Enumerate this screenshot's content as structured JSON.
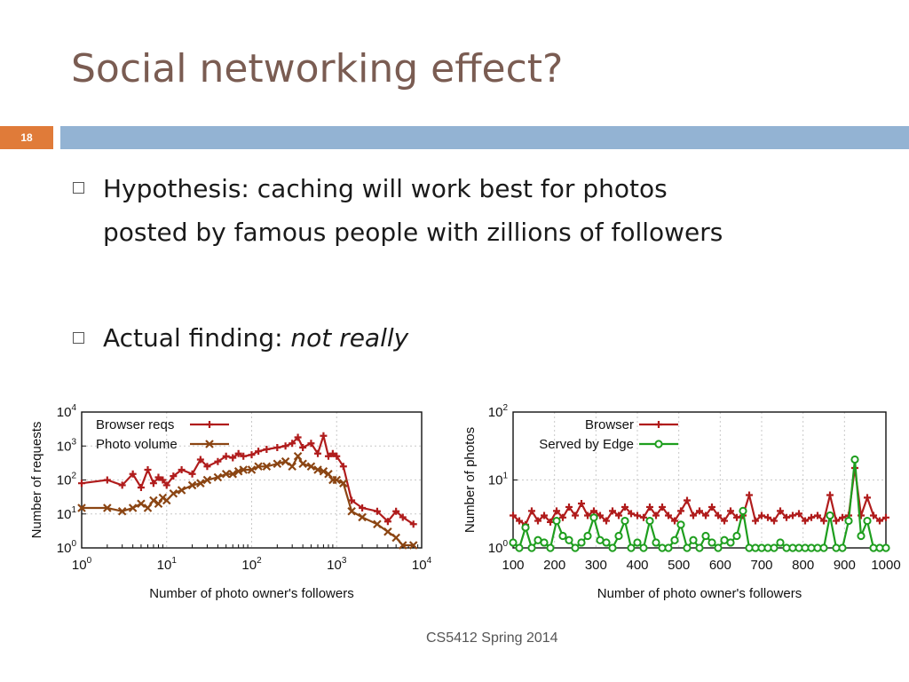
{
  "slide": {
    "title": "Social networking effect?",
    "slide_number": "18",
    "footer": "CS5412 Spring 2014",
    "colors": {
      "title": "#7a5c52",
      "accent_box": "#e07b39",
      "band": "#93b3d3"
    }
  },
  "bullets": [
    {
      "lines": [
        "Hypothesis: caching will work best for photos",
        "posted by famous people with zillions of followers"
      ]
    },
    {
      "lead": "Actual finding: ",
      "emph": "not really"
    }
  ],
  "chart_data": [
    {
      "type": "line",
      "title": "",
      "xlabel": "Number of photo owner's followers",
      "ylabel": "Number of requests",
      "x_scale": "log",
      "y_scale": "log",
      "xlim": [
        1,
        10000
      ],
      "ylim": [
        1,
        10000
      ],
      "x_ticks": [
        {
          "base": "10",
          "exp": "0"
        },
        {
          "base": "10",
          "exp": "1"
        },
        {
          "base": "10",
          "exp": "2"
        },
        {
          "base": "10",
          "exp": "3"
        },
        {
          "base": "10",
          "exp": "4"
        }
      ],
      "y_ticks": [
        {
          "base": "10",
          "exp": "0"
        },
        {
          "base": "10",
          "exp": "1"
        },
        {
          "base": "10",
          "exp": "2"
        },
        {
          "base": "10",
          "exp": "3"
        },
        {
          "base": "10",
          "exp": "4"
        }
      ],
      "grid": true,
      "legend": "top-left",
      "series": [
        {
          "name": "Browser reqs",
          "color": "#b01c1c",
          "marker": "plus",
          "x": [
            1,
            2,
            3,
            4,
            5,
            6,
            7,
            8,
            9,
            10,
            12,
            15,
            20,
            25,
            30,
            40,
            50,
            60,
            70,
            80,
            100,
            120,
            150,
            200,
            250,
            300,
            350,
            400,
            500,
            600,
            700,
            800,
            900,
            1000,
            1200,
            1500,
            2000,
            3000,
            4000,
            5000,
            6000,
            8000
          ],
          "y": [
            80,
            100,
            70,
            150,
            60,
            200,
            80,
            120,
            100,
            70,
            130,
            200,
            150,
            400,
            250,
            350,
            500,
            450,
            600,
            500,
            550,
            700,
            800,
            900,
            1000,
            1200,
            1800,
            900,
            1200,
            600,
            2000,
            500,
            600,
            500,
            250,
            25,
            15,
            12,
            6,
            12,
            8,
            5
          ]
        },
        {
          "name": "Photo volume",
          "color": "#8b4513",
          "marker": "x",
          "x": [
            1,
            2,
            3,
            4,
            5,
            6,
            7,
            8,
            9,
            10,
            12,
            15,
            20,
            25,
            30,
            40,
            50,
            60,
            70,
            80,
            100,
            120,
            150,
            200,
            250,
            300,
            350,
            400,
            500,
            600,
            700,
            800,
            900,
            1000,
            1200,
            1500,
            2000,
            3000,
            4000,
            5000,
            6000,
            8000
          ],
          "y": [
            15,
            15,
            12,
            15,
            20,
            15,
            25,
            20,
            30,
            25,
            40,
            50,
            70,
            80,
            100,
            120,
            150,
            150,
            180,
            200,
            200,
            250,
            250,
            300,
            350,
            250,
            500,
            300,
            250,
            200,
            180,
            150,
            100,
            100,
            80,
            12,
            8,
            5,
            3,
            2,
            1.2,
            1.2
          ]
        }
      ]
    },
    {
      "type": "line",
      "title": "",
      "xlabel": "Number of photo owner's followers",
      "ylabel": "Number of photos",
      "x_scale": "linear",
      "y_scale": "log",
      "xlim": [
        100,
        1000
      ],
      "ylim": [
        1,
        100
      ],
      "x_ticks": [
        "100",
        "200",
        "300",
        "400",
        "500",
        "600",
        "700",
        "800",
        "900",
        "1000"
      ],
      "y_ticks": [
        {
          "base": "10",
          "exp": "0"
        },
        {
          "base": "10",
          "exp": "1"
        },
        {
          "base": "10",
          "exp": "2"
        }
      ],
      "grid": true,
      "legend": "top-left",
      "series": [
        {
          "name": "Browser",
          "color": "#b01c1c",
          "marker": "plus",
          "x": [
            100,
            115,
            130,
            145,
            160,
            175,
            190,
            205,
            220,
            235,
            250,
            265,
            280,
            295,
            310,
            325,
            340,
            355,
            370,
            385,
            400,
            415,
            430,
            445,
            460,
            475,
            490,
            505,
            520,
            535,
            550,
            565,
            580,
            595,
            610,
            625,
            640,
            655,
            670,
            685,
            700,
            715,
            730,
            745,
            760,
            775,
            790,
            805,
            820,
            835,
            850,
            865,
            880,
            895,
            910,
            925,
            940,
            955,
            970,
            985,
            1000
          ],
          "y": [
            3,
            2.5,
            2.2,
            3.5,
            2.5,
            3,
            2.4,
            3.5,
            2.8,
            4,
            3,
            4.5,
            3,
            3.5,
            3,
            2.5,
            3.5,
            3,
            4,
            3.2,
            3,
            2.8,
            4,
            3,
            4,
            3,
            2.5,
            3.5,
            5,
            3,
            3.5,
            3,
            4,
            3,
            2.5,
            3.5,
            2.8,
            3,
            6,
            2.5,
            3,
            2.8,
            2.5,
            3.5,
            2.8,
            3,
            3.2,
            2.5,
            2.8,
            3,
            2.5,
            6,
            2.5,
            2.8,
            3,
            15,
            3,
            5.5,
            3,
            2.5,
            2.8
          ]
        },
        {
          "name": "Served by Edge",
          "color": "#1e9e1e",
          "marker": "circle",
          "x": [
            100,
            115,
            130,
            145,
            160,
            175,
            190,
            205,
            220,
            235,
            250,
            265,
            280,
            295,
            310,
            325,
            340,
            355,
            370,
            385,
            400,
            415,
            430,
            445,
            460,
            475,
            490,
            505,
            520,
            535,
            550,
            565,
            580,
            595,
            610,
            625,
            640,
            655,
            670,
            685,
            700,
            715,
            730,
            745,
            760,
            775,
            790,
            805,
            820,
            835,
            850,
            865,
            880,
            895,
            910,
            925,
            940,
            955,
            970,
            985,
            1000
          ],
          "y": [
            1.2,
            1,
            2,
            1,
            1.3,
            1.2,
            1,
            2.5,
            1.5,
            1.3,
            1,
            1.2,
            1.5,
            2.8,
            1.3,
            1.2,
            1,
            1.5,
            2.5,
            1,
            1.2,
            1,
            2.5,
            1.2,
            1,
            1,
            1.3,
            2.2,
            1,
            1.3,
            1,
            1.5,
            1.2,
            1,
            1.3,
            1.2,
            1.5,
            3.5,
            1,
            1,
            1,
            1,
            1,
            1.2,
            1,
            1,
            1,
            1,
            1,
            1,
            1,
            3,
            1,
            1,
            2.5,
            20,
            1.5,
            2.5,
            1,
            1,
            1
          ]
        }
      ]
    }
  ]
}
